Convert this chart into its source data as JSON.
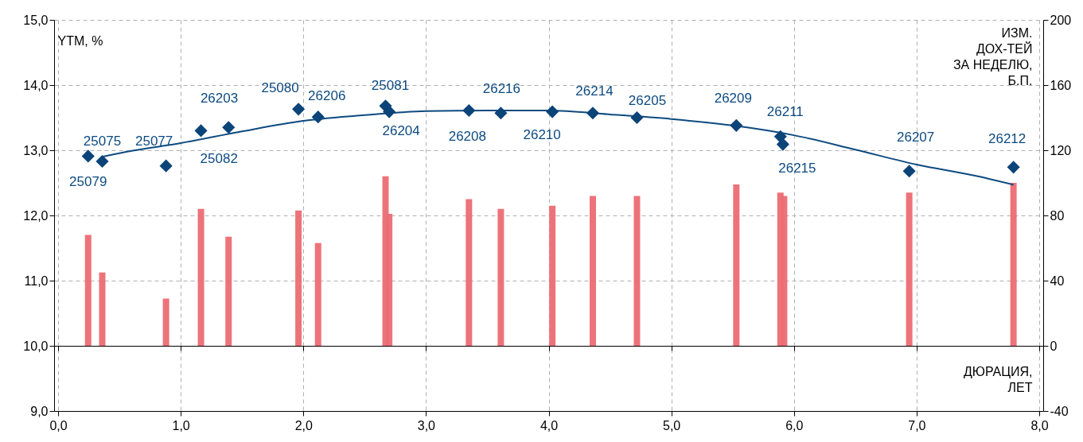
{
  "chart_data": {
    "type": "scatter",
    "xlabel": "ДЮРАЦИЯ,\nЛЕТ",
    "ylabel": "YTM, %",
    "y2label": "ИЗМ.\nДОХ-ТЕЙ\nЗА НЕДЕЛЮ,\nБ.П.",
    "xlim": [
      0,
      8
    ],
    "xticks": [
      {
        "value": 0,
        "label": "0,0"
      },
      {
        "value": 1,
        "label": "1,0"
      },
      {
        "value": 2,
        "label": "2,0"
      },
      {
        "value": 3,
        "label": "3,0"
      },
      {
        "value": 4,
        "label": "4,0"
      },
      {
        "value": 5,
        "label": "5,0"
      },
      {
        "value": 6,
        "label": "6,0"
      },
      {
        "value": 7,
        "label": "7,0"
      },
      {
        "value": 8,
        "label": "8,0"
      }
    ],
    "ylim": [
      9,
      15
    ],
    "yticks": [
      {
        "value": 9,
        "label": "9,0"
      },
      {
        "value": 10,
        "label": "10,0"
      },
      {
        "value": 11,
        "label": "11,0"
      },
      {
        "value": 12,
        "label": "12,0"
      },
      {
        "value": 13,
        "label": "13,0"
      },
      {
        "value": 14,
        "label": "14,0"
      },
      {
        "value": 15,
        "label": "15,0"
      }
    ],
    "y2lim": [
      -40,
      200
    ],
    "y2ticks": [
      -40,
      0,
      40,
      80,
      120,
      160,
      200
    ],
    "grid": true,
    "series": [
      {
        "type": "bar",
        "axis": "y2",
        "color": "#ec6c73",
        "x": [
          0.245,
          0.36,
          0.88,
          1.165,
          1.39,
          1.96,
          2.12,
          2.67,
          2.7,
          3.35,
          3.61,
          4.03,
          4.36,
          4.72,
          5.53,
          5.89,
          5.92,
          6.94,
          7.79
        ],
        "values": [
          68,
          45,
          29,
          84,
          67,
          83,
          63,
          104,
          81,
          90,
          84,
          86,
          92,
          92,
          99,
          94,
          92,
          94,
          100
        ]
      },
      {
        "type": "line",
        "color": "#0d4a80",
        "x": [
          0.36,
          0.6,
          1.0,
          1.5,
          2.0,
          2.5,
          3.0,
          3.5,
          4.0,
          4.5,
          5.0,
          5.5,
          6.0,
          6.5,
          7.0,
          7.5,
          7.79
        ],
        "values": [
          12.9,
          12.99,
          13.11,
          13.29,
          13.45,
          13.54,
          13.6,
          13.61,
          13.61,
          13.55,
          13.48,
          13.38,
          13.23,
          13.01,
          12.78,
          12.6,
          12.47
        ]
      },
      {
        "marker": "diamond",
        "color": "#0b4478",
        "x": [
          0.245,
          0.36,
          0.88,
          1.165,
          1.39,
          1.96,
          2.12,
          2.67,
          2.7,
          3.35,
          3.61,
          4.03,
          4.36,
          4.72,
          5.53,
          5.89,
          5.91,
          6.94,
          7.79
        ],
        "values": [
          12.91,
          12.83,
          12.76,
          13.3,
          13.35,
          13.63,
          13.51,
          13.68,
          13.59,
          13.61,
          13.57,
          13.59,
          13.57,
          13.5,
          13.38,
          13.21,
          13.09,
          12.68,
          12.74
        ]
      }
    ],
    "annotations": [
      {
        "text": "25079",
        "x": 0.245,
        "y": 12.91
      },
      {
        "text": "25075",
        "x": 0.36,
        "y": 12.83
      },
      {
        "text": "25077",
        "x": 0.88,
        "y": 12.76
      },
      {
        "text": "26203",
        "x": 1.165,
        "y": 13.3
      },
      {
        "text": "25082",
        "x": 1.39,
        "y": 13.35
      },
      {
        "text": "25080",
        "x": 1.96,
        "y": 13.63
      },
      {
        "text": "26206",
        "x": 2.12,
        "y": 13.51
      },
      {
        "text": "25081",
        "x": 2.67,
        "y": 13.68
      },
      {
        "text": "26204",
        "x": 2.7,
        "y": 13.59
      },
      {
        "text": "26208",
        "x": 3.35,
        "y": 13.61
      },
      {
        "text": "26216",
        "x": 3.61,
        "y": 13.57
      },
      {
        "text": "26210",
        "x": 4.03,
        "y": 13.59
      },
      {
        "text": "26214",
        "x": 4.36,
        "y": 13.57
      },
      {
        "text": "26205",
        "x": 4.72,
        "y": 13.5
      },
      {
        "text": "26209",
        "x": 5.53,
        "y": 13.38
      },
      {
        "text": "26211",
        "x": 5.89,
        "y": 13.21
      },
      {
        "text": "26215",
        "x": 5.91,
        "y": 13.09
      },
      {
        "text": "26207",
        "x": 6.94,
        "y": 12.68
      },
      {
        "text": "26212",
        "x": 7.79,
        "y": 12.74
      }
    ]
  }
}
